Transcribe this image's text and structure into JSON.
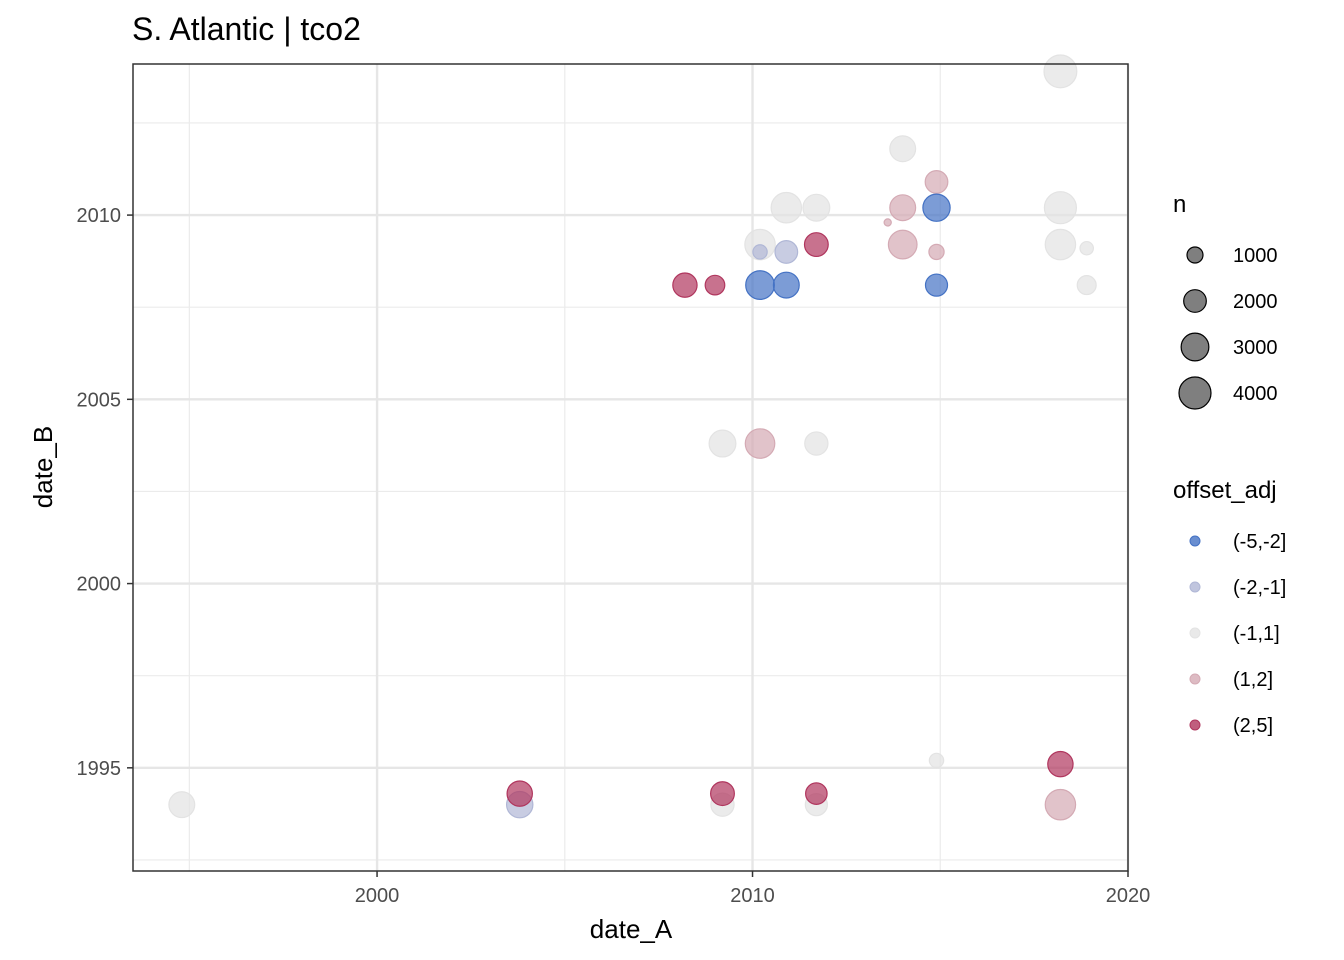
{
  "chart_data": {
    "type": "scatter",
    "title": "S. Atlantic | tco2",
    "xlabel": "date_A",
    "ylabel": "date_B",
    "xlim": [
      1993.5,
      2020.0
    ],
    "ylim": [
      1992.2,
      2014.1
    ],
    "x_ticks": [
      2000,
      2010,
      2020
    ],
    "y_ticks": [
      1995,
      2000,
      2005,
      2010
    ],
    "grid": true,
    "legend_placement": "right",
    "size_legend": {
      "title": "n",
      "entries": [
        {
          "label": "1000",
          "value": 1000
        },
        {
          "label": "2000",
          "value": 2000
        },
        {
          "label": "3000",
          "value": 3000
        },
        {
          "label": "4000",
          "value": 4000
        }
      ]
    },
    "color_legend": {
      "title": "offset_adj",
      "entries": [
        {
          "label": "(-5,-2]",
          "color": "#4472c4"
        },
        {
          "label": "(-2,-1]",
          "color": "#b0b7d6"
        },
        {
          "label": "(-1,1]",
          "color": "#e3e3e3"
        },
        {
          "label": "(1,2]",
          "color": "#d4aab4"
        },
        {
          "label": "(2,5]",
          "color": "#b0365e"
        }
      ]
    },
    "series": [
      {
        "category": "(-1,1]",
        "points": [
          {
            "x": 2018.2,
            "y": 2013.9,
            "n": 4200
          },
          {
            "x": 2014.0,
            "y": 2011.8,
            "n": 2600
          },
          {
            "x": 2010.9,
            "y": 2010.2,
            "n": 3600
          },
          {
            "x": 2011.7,
            "y": 2010.2,
            "n": 2800
          },
          {
            "x": 2018.2,
            "y": 2010.2,
            "n": 4000
          },
          {
            "x": 2010.2,
            "y": 2009.2,
            "n": 3600
          },
          {
            "x": 2018.2,
            "y": 2009.2,
            "n": 3600
          },
          {
            "x": 2018.9,
            "y": 2009.1,
            "n": 700
          },
          {
            "x": 2018.9,
            "y": 2008.1,
            "n": 1400
          },
          {
            "x": 2009.2,
            "y": 2003.8,
            "n": 2800
          },
          {
            "x": 2011.7,
            "y": 2003.8,
            "n": 2100
          },
          {
            "x": 2014.9,
            "y": 1995.2,
            "n": 800
          },
          {
            "x": 1994.8,
            "y": 1994.0,
            "n": 2600
          },
          {
            "x": 2009.2,
            "y": 1994.0,
            "n": 2100
          },
          {
            "x": 2011.7,
            "y": 1994.0,
            "n": 1900
          }
        ]
      },
      {
        "category": "(1,2]",
        "points": [
          {
            "x": 2014.9,
            "y": 2010.9,
            "n": 2000
          },
          {
            "x": 2014.0,
            "y": 2010.2,
            "n": 2600
          },
          {
            "x": 2013.6,
            "y": 2009.8,
            "n": 200
          },
          {
            "x": 2014.0,
            "y": 2009.2,
            "n": 3200
          },
          {
            "x": 2014.9,
            "y": 2009.0,
            "n": 900
          },
          {
            "x": 2010.2,
            "y": 2003.8,
            "n": 3400
          },
          {
            "x": 2018.2,
            "y": 1994.0,
            "n": 3600
          }
        ]
      },
      {
        "category": "(-5,-2]",
        "points": [
          {
            "x": 2014.9,
            "y": 2010.2,
            "n": 2900
          },
          {
            "x": 2010.2,
            "y": 2008.1,
            "n": 3200
          },
          {
            "x": 2010.9,
            "y": 2008.1,
            "n": 2600
          },
          {
            "x": 2014.9,
            "y": 2008.1,
            "n": 1900
          }
        ]
      },
      {
        "category": "(-2,-1]",
        "points": [
          {
            "x": 2010.2,
            "y": 2009.0,
            "n": 800
          },
          {
            "x": 2010.9,
            "y": 2009.0,
            "n": 2000
          },
          {
            "x": 2003.8,
            "y": 1994.0,
            "n": 2700
          }
        ]
      },
      {
        "category": "(2,5]",
        "points": [
          {
            "x": 2011.7,
            "y": 2009.2,
            "n": 2200
          },
          {
            "x": 2008.2,
            "y": 2008.1,
            "n": 2300
          },
          {
            "x": 2009.0,
            "y": 2008.1,
            "n": 1500
          },
          {
            "x": 2003.8,
            "y": 1994.3,
            "n": 2500
          },
          {
            "x": 2009.2,
            "y": 1994.3,
            "n": 2200
          },
          {
            "x": 2011.7,
            "y": 1994.3,
            "n": 1800
          },
          {
            "x": 2018.2,
            "y": 1995.1,
            "n": 2500
          }
        ]
      }
    ]
  }
}
